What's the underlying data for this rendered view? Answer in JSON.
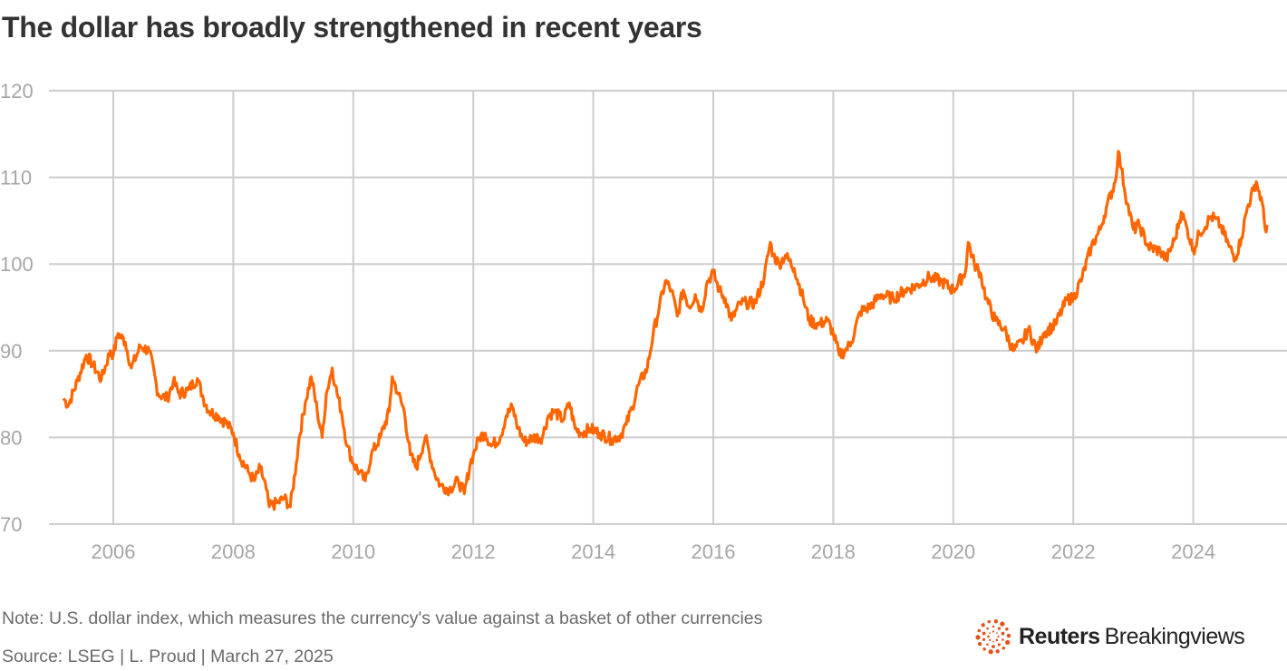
{
  "title": "The dollar has broadly strengthened in recent years",
  "note": "Note: U.S. dollar index, which measures the currency's value against a basket of other currencies",
  "source": "Source: LSEG | L. Proud | March 27, 2025",
  "logo": {
    "bold": "Reuters",
    "regular": "Breakingviews"
  },
  "chart_data": {
    "type": "line",
    "title": "The dollar has broadly strengthened in recent years",
    "xlabel": "",
    "ylabel": "",
    "ylim": [
      70,
      120
    ],
    "xlim": [
      2005.0,
      2025.5
    ],
    "yticks": [
      "70",
      "80",
      "90",
      "100",
      "110",
      "120"
    ],
    "xticks": [
      "2006",
      "2008",
      "2010",
      "2012",
      "2014",
      "2016",
      "2018",
      "2020",
      "2022",
      "2024"
    ],
    "grid": true,
    "line_color": "#ff6600",
    "x": [
      2005.17,
      2005.25,
      2005.4,
      2005.55,
      2005.65,
      2005.8,
      2005.95,
      2006.0,
      2006.08,
      2006.2,
      2006.3,
      2006.45,
      2006.6,
      2006.75,
      2006.9,
      2007.0,
      2007.1,
      2007.25,
      2007.4,
      2007.5,
      2007.6,
      2007.75,
      2007.9,
      2008.0,
      2008.1,
      2008.25,
      2008.35,
      2008.45,
      2008.55,
      2008.6,
      2008.75,
      2008.85,
      2008.95,
      2009.05,
      2009.1,
      2009.2,
      2009.3,
      2009.4,
      2009.48,
      2009.55,
      2009.65,
      2009.7,
      2009.8,
      2009.9,
      2010.0,
      2010.1,
      2010.2,
      2010.3,
      2010.45,
      2010.6,
      2010.65,
      2010.75,
      2010.85,
      2010.95,
      2011.05,
      2011.2,
      2011.35,
      2011.45,
      2011.6,
      2011.75,
      2011.85,
      2011.95,
      2012.0,
      2012.1,
      2012.2,
      2012.3,
      2012.45,
      2012.55,
      2012.65,
      2012.75,
      2012.85,
      2013.0,
      2013.15,
      2013.25,
      2013.35,
      2013.5,
      2013.6,
      2013.7,
      2013.8,
      2013.95,
      2014.1,
      2014.3,
      2014.45,
      2014.55,
      2014.65,
      2014.75,
      2014.9,
      2015.0,
      2015.1,
      2015.2,
      2015.3,
      2015.4,
      2015.5,
      2015.6,
      2015.7,
      2015.8,
      2015.9,
      2016.0,
      2016.1,
      2016.2,
      2016.3,
      2016.45,
      2016.55,
      2016.7,
      2016.85,
      2016.95,
      2017.0,
      2017.1,
      2017.2,
      2017.35,
      2017.5,
      2017.6,
      2017.75,
      2017.9,
      2018.0,
      2018.1,
      2018.2,
      2018.3,
      2018.45,
      2018.6,
      2018.8,
      2019.0,
      2019.2,
      2019.4,
      2019.6,
      2019.8,
      2020.0,
      2020.2,
      2020.25,
      2020.35,
      2020.45,
      2020.55,
      2020.7,
      2020.85,
      2021.0,
      2021.15,
      2021.25,
      2021.4,
      2021.5,
      2021.7,
      2021.9,
      2022.0,
      2022.15,
      2022.3,
      2022.45,
      2022.55,
      2022.7,
      2022.75,
      2022.8,
      2022.9,
      2023.0,
      2023.1,
      2023.25,
      2023.45,
      2023.55,
      2023.7,
      2023.8,
      2023.9,
      2024.0,
      2024.1,
      2024.3,
      2024.45,
      2024.6,
      2024.7,
      2024.8,
      2024.9,
      2025.0,
      2025.05,
      2025.15,
      2025.2,
      2025.23
    ],
    "y": [
      84.5,
      83.7,
      86.5,
      89.5,
      88.5,
      86.7,
      90,
      89.5,
      92,
      91,
      88,
      90.5,
      90,
      85,
      84.5,
      86.5,
      85,
      85.5,
      86.8,
      84.5,
      83,
      82.5,
      81.5,
      80.5,
      78,
      76,
      75,
      76.5,
      74,
      72,
      72.5,
      73,
      72,
      77,
      80,
      84,
      87,
      83,
      80,
      85,
      88,
      86,
      83,
      79,
      77,
      76,
      75,
      78,
      80,
      83,
      87,
      85,
      83,
      78,
      76.5,
      80,
      76,
      74.5,
      74,
      75,
      73.5,
      77,
      78,
      80,
      80.5,
      79,
      80,
      82.5,
      83.5,
      81,
      79.5,
      80,
      80,
      82.5,
      83,
      82,
      84,
      81,
      80.5,
      81,
      80.5,
      79.8,
      80.2,
      81.5,
      83.5,
      86,
      88,
      92,
      95,
      98,
      97,
      94,
      97,
      95,
      96.5,
      94.5,
      98,
      99,
      97,
      96,
      93.5,
      95.5,
      95.5,
      95.5,
      98.5,
      102.5,
      101,
      100,
      101,
      99.5,
      96,
      93.5,
      93,
      93.5,
      92,
      89.5,
      90,
      91,
      94.5,
      95,
      96.5,
      96,
      97,
      97.5,
      98.5,
      98,
      97,
      99,
      102.5,
      100,
      99,
      96,
      93.5,
      92.5,
      90,
      91,
      92.5,
      90,
      92,
      93,
      96,
      96,
      98.5,
      102,
      104,
      106.5,
      109.5,
      113,
      111,
      107,
      104,
      104.5,
      102,
      101.5,
      100.5,
      103,
      106,
      104,
      101.5,
      103.5,
      105.5,
      104.5,
      102,
      100.7,
      103,
      106.5,
      108.5,
      109.5,
      107,
      104,
      104.5
    ]
  }
}
